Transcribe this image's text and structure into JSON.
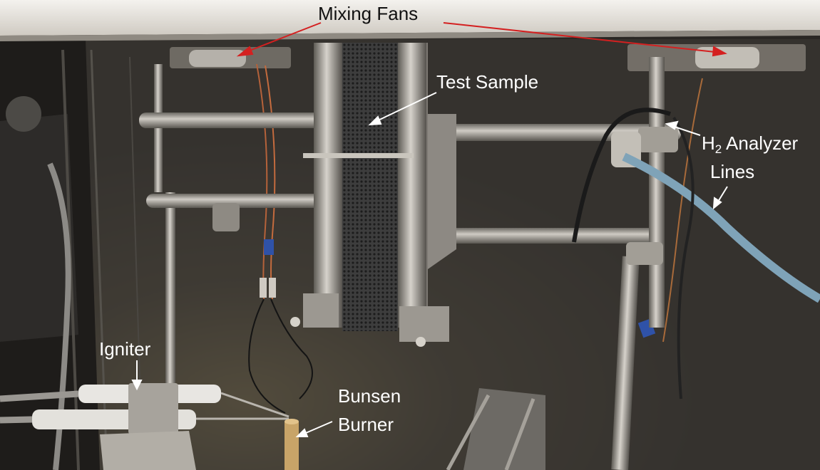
{
  "labels": {
    "mixing_fans": "Mixing Fans",
    "test_sample": "Test Sample",
    "h2_prefix": "H",
    "h2_subscript": "2",
    "h2_suffix": " Analyzer",
    "h2_line2": "Lines",
    "igniter": "Igniter",
    "bunsen_line1": "Bunsen",
    "bunsen_line2": "Burner"
  },
  "colors": {
    "fan_arrow": "#d42020",
    "callout_arrow": "#ffffff",
    "chamber_wall": "#3a3632",
    "stainless_steel": "#a8a49e",
    "analyzer_tube": "#7fa3b8"
  }
}
